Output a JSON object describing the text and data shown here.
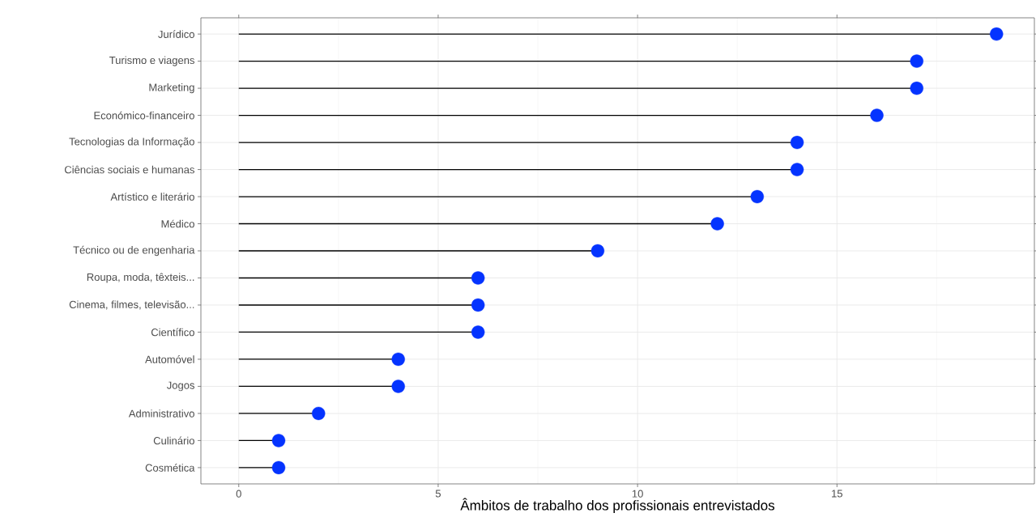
{
  "chart_data": {
    "type": "lollipop",
    "orientation": "horizontal",
    "xlabel": "Âmbitos de trabalho dos profissionais entrevistados",
    "categories": [
      "Jurídico",
      "Turismo e viagens",
      "Marketing",
      "Económico-financeiro",
      "Tecnologias da Informação",
      "Ciências sociais e humanas",
      "Artístico e literário",
      "Médico",
      "Técnico ou de engenharia",
      "Roupa, moda, têxteis...",
      "Cinema, filmes, televisão...",
      "Científico",
      "Automóvel",
      "Jogos",
      "Administrativo",
      "Culinário",
      "Cosmética"
    ],
    "values": [
      19,
      17,
      17,
      16,
      14,
      14,
      13,
      12,
      9,
      6,
      6,
      6,
      4,
      4,
      2,
      1,
      1
    ],
    "color": "#0433ff",
    "marker": "circle",
    "grid": true,
    "xlim": [
      -0.95,
      19.95
    ],
    "xticks": [
      0,
      5,
      10,
      15
    ]
  }
}
